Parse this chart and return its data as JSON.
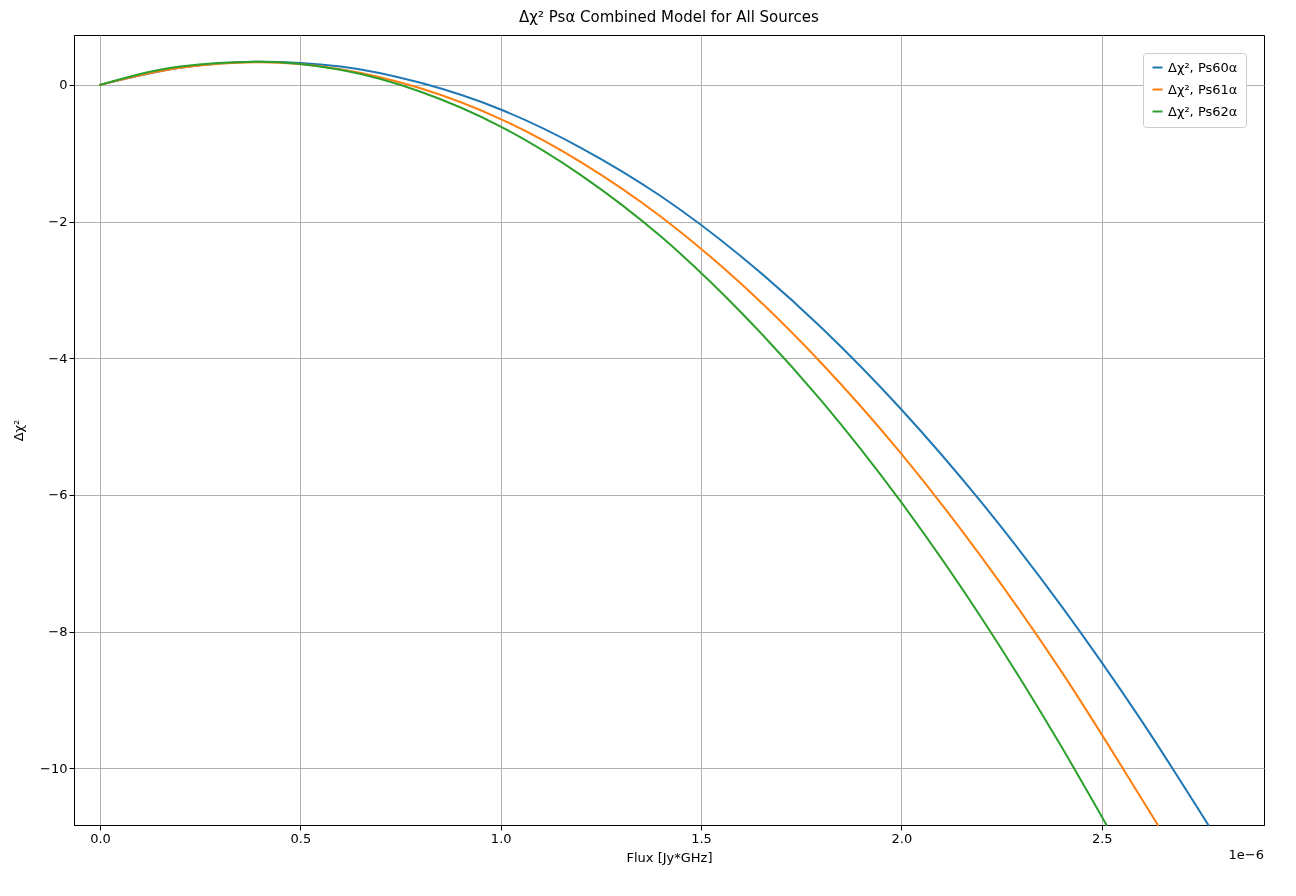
{
  "chart_data": {
    "type": "line",
    "title": "Δχ² Psα Combined Model for All Sources",
    "xlabel": "Flux [Jy*GHz]",
    "ylabel": "Δχ²",
    "annotations": [
      "1e−6"
    ],
    "xlim": [
      -0.065,
      2.905
    ],
    "ylim": [
      -10.83,
      0.73
    ],
    "xticks": [
      {
        "value": 0,
        "label": "0.0"
      },
      {
        "value": 0.5,
        "label": "0.5"
      },
      {
        "value": 1,
        "label": "1.0"
      },
      {
        "value": 1.5,
        "label": "1.5"
      },
      {
        "value": 2,
        "label": "2.0"
      },
      {
        "value": 2.5,
        "label": "2.5"
      }
    ],
    "yticks": [
      0,
      -2,
      -4,
      -6,
      -8,
      -10
    ],
    "grid": true,
    "legend": "top right",
    "line_style": "solid",
    "series": [
      {
        "name": "Δχ², Ps60α",
        "color": "#1f77b4",
        "x": [
          0,
          0.2,
          0.4,
          0.6,
          0.8,
          1.0,
          1.2,
          1.4,
          1.6,
          1.8,
          2.0,
          2.2,
          2.4,
          2.6,
          2.766
        ],
        "values": [
          0,
          0.25,
          0.34,
          0.27,
          0.03,
          -0.36,
          -0.92,
          -1.63,
          -2.51,
          -3.55,
          -4.75,
          -6.11,
          -7.63,
          -9.31,
          -10.83
        ]
      },
      {
        "name": "Δχ², Ps61α",
        "color": "#ff7f0e",
        "x": [
          0,
          0.2,
          0.4,
          0.6,
          0.8,
          1.0,
          1.2,
          1.4,
          1.6,
          1.8,
          2.0,
          2.2,
          2.4,
          2.6,
          2.64
        ],
        "values": [
          0,
          0.25,
          0.33,
          0.23,
          -0.05,
          -0.5,
          -1.13,
          -1.93,
          -2.91,
          -4.07,
          -5.4,
          -6.91,
          -8.59,
          -10.45,
          -10.83
        ]
      },
      {
        "name": "Δχ², Ps62α",
        "color": "#2ca02c",
        "x": [
          0,
          0.2,
          0.4,
          0.6,
          0.8,
          1.0,
          1.2,
          1.4,
          1.6,
          1.8,
          2.0,
          2.2,
          2.4,
          2.512
        ],
        "values": [
          0,
          0.27,
          0.34,
          0.22,
          -0.1,
          -0.61,
          -1.32,
          -2.22,
          -3.33,
          -4.62,
          -6.11,
          -7.8,
          -9.69,
          -10.83
        ]
      }
    ]
  }
}
